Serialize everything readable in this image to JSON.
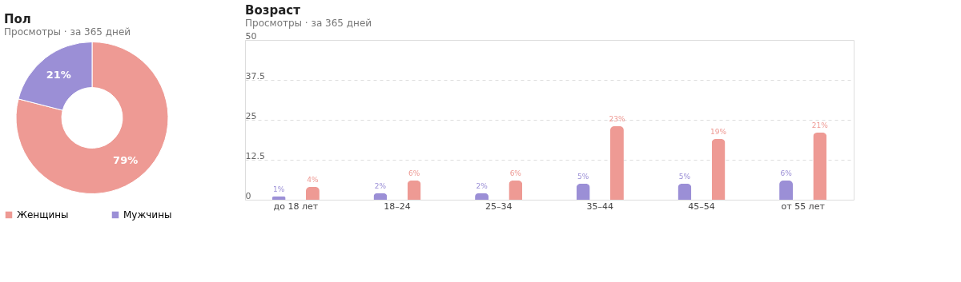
{
  "chart_data": [
    {
      "type": "donut",
      "title": "Пол",
      "subtitle": "Просмотры · за 365 дней",
      "categories": [
        "Женщины",
        "Мужчины"
      ],
      "values": [
        79,
        21
      ],
      "colors": [
        "#ee9a94",
        "#9b8fd6"
      ],
      "value_labels": [
        "79%",
        "21%"
      ],
      "legend": "bottom"
    },
    {
      "type": "bar",
      "title": "Возраст",
      "subtitle": "Просмотры · за 365 дней",
      "categories": [
        "до 18 лет",
        "18–24",
        "25–34",
        "35–44",
        "45–54",
        "от 55 лет"
      ],
      "ylim": [
        0,
        50
      ],
      "yticks": [
        0,
        12.5,
        25,
        37.5,
        50
      ],
      "grid": "y",
      "series": [
        {
          "color": "#9b8fd6",
          "values": [
            1,
            2,
            2,
            5,
            5,
            6
          ],
          "value_labels": [
            "1%",
            "2%",
            "2%",
            "5%",
            "5%",
            "6%"
          ]
        },
        {
          "color": "#ee9a94",
          "values": [
            4,
            6,
            6,
            23,
            19,
            21
          ],
          "value_labels": [
            "4%",
            "6%",
            "6%",
            "23%",
            "19%",
            "21%"
          ]
        }
      ]
    }
  ]
}
